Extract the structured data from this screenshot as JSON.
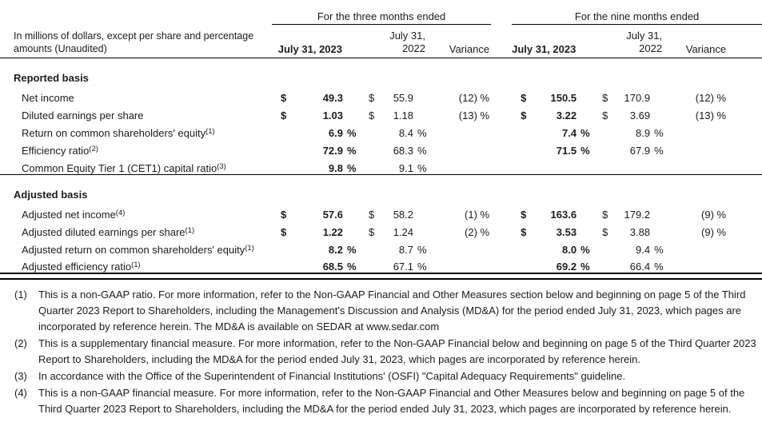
{
  "stub": {
    "line1": "In millions of dollars, except per share and percentage",
    "line2": "amounts (Unaudited)"
  },
  "header": {
    "groups": [
      {
        "label": "For the three months ended"
      },
      {
        "label": "For the nine months ended"
      }
    ],
    "columns": {
      "current": "July 31, 2023",
      "prior_line1": "July 31,",
      "prior_line2": "2022",
      "variance": "Variance"
    }
  },
  "table": {
    "sections": [
      {
        "title": "Reported basis",
        "rows": [
          {
            "label": "Net income",
            "sup": "",
            "cells": [
              "$",
              "49.3",
              "",
              "$",
              "55.9",
              "",
              "(12) %",
              "$",
              "150.5",
              "",
              "$",
              "170.9",
              "",
              "(12) %"
            ]
          },
          {
            "label": "Diluted earnings per share",
            "sup": "",
            "cells": [
              "$",
              "1.03",
              "",
              "$",
              "1.18",
              "",
              "(13) %",
              "$",
              "3.22",
              "",
              "$",
              "3.69",
              "",
              "(13) %"
            ]
          },
          {
            "label": "Return on common shareholders' equity",
            "sup": "(1)",
            "cells": [
              "",
              "6.9",
              "%",
              "",
              "8.4",
              "%",
              "",
              "",
              "7.4",
              "%",
              "",
              "8.9",
              "%",
              ""
            ]
          },
          {
            "label": "Efficiency ratio",
            "sup": "(2)",
            "cells": [
              "",
              "72.9",
              "%",
              "",
              "68.3",
              "%",
              "",
              "",
              "71.5",
              "%",
              "",
              "67.9",
              "%",
              ""
            ]
          },
          {
            "label": "Common Equity Tier 1 (CET1) capital ratio",
            "sup": "(3)",
            "cells": [
              "",
              "9.8",
              "%",
              "",
              "9.1",
              "%",
              "",
              "",
              "",
              "",
              "",
              "",
              "",
              ""
            ]
          }
        ]
      },
      {
        "title": "Adjusted basis",
        "rows": [
          {
            "label": "Adjusted net income",
            "sup": "(4)",
            "cells": [
              "$",
              "57.6",
              "",
              "$",
              "58.2",
              "",
              "(1) %",
              "$",
              "163.6",
              "",
              "$",
              "179.2",
              "",
              "(9) %"
            ]
          },
          {
            "label": "Adjusted diluted earnings per share",
            "sup": "(1)",
            "cells": [
              "$",
              "1.22",
              "",
              "$",
              "1.24",
              "",
              "(2) %",
              "$",
              "3.53",
              "",
              "$",
              "3.88",
              "",
              "(9) %"
            ]
          },
          {
            "label": "Adjusted return on common shareholders' equity",
            "sup": "(1)",
            "cells": [
              "",
              "8.2",
              "%",
              "",
              "8.7",
              "%",
              "",
              "",
              "8.0",
              "%",
              "",
              "9.4",
              "%",
              ""
            ]
          },
          {
            "label": "Adjusted efficiency ratio",
            "sup": "(1)",
            "cells": [
              "",
              "68.5",
              "%",
              "",
              "67.1",
              "%",
              "",
              "",
              "69.2",
              "%",
              "",
              "66.4",
              "%",
              ""
            ]
          }
        ]
      }
    ]
  },
  "footnotes": [
    {
      "marker": "(1)",
      "text": "This is a non-GAAP ratio. For more information, refer to the Non-GAAP Financial and Other Measures section below and beginning on page 5 of the Third Quarter 2023 Report to Shareholders, including the Management's Discussion and Analysis (MD&A) for the period ended July 31, 2023, which pages are incorporated by reference herein. The MD&A is available on SEDAR at www.sedar.com"
    },
    {
      "marker": "(2)",
      "text": "This is a supplementary financial measure. For more information, refer to the Non-GAAP Financial below and beginning on page 5 of the Third Quarter 2023 Report to Shareholders, including the MD&A for the period ended July 31, 2023, which pages are incorporated by reference herein."
    },
    {
      "marker": "(3)",
      "text": "In accordance with the Office of the Superintendent of Financial Institutions' (OSFI) \"Capital Adequacy Requirements\" guideline."
    },
    {
      "marker": "(4)",
      "text": "This is a non-GAAP financial measure. For more information, refer to the Non-GAAP Financial and Other Measures below and beginning on page 5 of the Third Quarter 2023 Report to Shareholders, including the MD&A for the period ended July 31, 2023, which pages are incorporated by reference herein."
    }
  ]
}
